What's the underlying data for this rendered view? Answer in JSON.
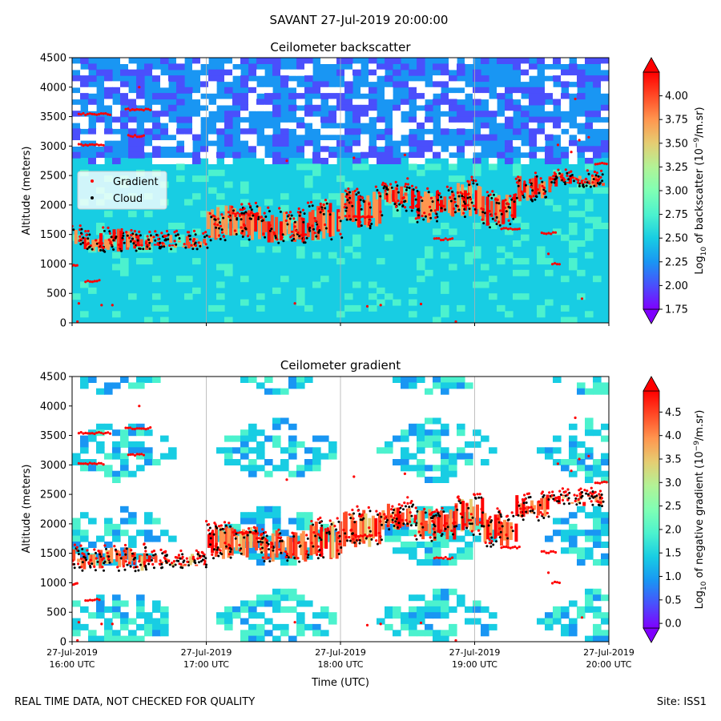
{
  "suptitle": "SAVANT 27-Jul-2019 20:00:00",
  "footer_left": "REAL TIME DATA, NOT CHECKED FOR QUALITY",
  "footer_right": "Site: ISS1",
  "colors": {
    "gradient_marker": "#ff0000",
    "cloud_marker": "#000000",
    "colormap": [
      "#7f00ff",
      "#4a4ffc",
      "#1996f3",
      "#18cde3",
      "#4cf2ce",
      "#80ffb4",
      "#b2f296",
      "#e5cd72",
      "#ff964f",
      "#ff4a26",
      "#ff0000"
    ]
  },
  "chart_data": [
    {
      "type": "heatmap",
      "title": "Ceilometer backscatter",
      "xlabel": "",
      "ylabel": "Altitude (meters)",
      "ylim": [
        0,
        4500
      ],
      "yticks": [
        0,
        500,
        1000,
        1500,
        2000,
        2500,
        3000,
        3500,
        4000,
        4500
      ],
      "ytick_labels": [
        "0",
        "500",
        "1000",
        "1500",
        "2000",
        "2500",
        "3000",
        "3500",
        "4000",
        "4500"
      ],
      "x_range_utc": [
        "16:00",
        "20:00"
      ],
      "show_xtick_labels": false,
      "colorbar": {
        "label_prefix": "Log",
        "label_sub": "10",
        "label_mid": " of backscatter (10",
        "label_sup": "−9",
        "label_suffix": "/m.sr)",
        "range": [
          1.75,
          4.25
        ],
        "ticks": [
          1.75,
          2.0,
          2.25,
          2.5,
          2.75,
          3.0,
          3.25,
          3.5,
          3.75,
          4.0
        ],
        "tick_labels": [
          "1.75",
          "2.00",
          "2.25",
          "2.50",
          "2.75",
          "3.00",
          "3.25",
          "3.50",
          "3.75",
          "4.00"
        ]
      },
      "legend": {
        "location": "center-left",
        "entries": [
          {
            "label": "Gradient",
            "color": "#ff0000"
          },
          {
            "label": "Cloud",
            "color": "#000000"
          }
        ]
      }
    },
    {
      "type": "heatmap",
      "title": "Ceilometer gradient",
      "xlabel": "Time (UTC)",
      "ylabel": "Altitude (meters)",
      "ylim": [
        0,
        4500
      ],
      "yticks": [
        0,
        500,
        1000,
        1500,
        2000,
        2500,
        3000,
        3500,
        4000,
        4500
      ],
      "ytick_labels": [
        "0",
        "500",
        "1000",
        "1500",
        "2000",
        "2500",
        "3000",
        "3500",
        "4000",
        "4500"
      ],
      "x_range_utc": [
        "16:00",
        "20:00"
      ],
      "show_xtick_labels": true,
      "xticks": [
        {
          "line1": "27-Jul-2019",
          "line2": "16:00 UTC",
          "t": 0
        },
        {
          "line1": "27-Jul-2019",
          "line2": "17:00 UTC",
          "t": 1
        },
        {
          "line1": "27-Jul-2019",
          "line2": "18:00 UTC",
          "t": 2
        },
        {
          "line1": "27-Jul-2019",
          "line2": "19:00 UTC",
          "t": 3
        },
        {
          "line1": "27-Jul-2019",
          "line2": "20:00 UTC",
          "t": 4
        }
      ],
      "colorbar": {
        "label_prefix": "Log",
        "label_sub": "10",
        "label_mid": " of negative gradient (10",
        "label_sup": "−9",
        "label_suffix": "/m.sr)",
        "range": [
          -0.1,
          4.95
        ],
        "ticks": [
          0.0,
          0.5,
          1.0,
          1.5,
          2.0,
          2.5,
          3.0,
          3.5,
          4.0,
          4.5
        ],
        "tick_labels": [
          "0.0",
          "0.5",
          "1.0",
          "1.5",
          "2.0",
          "2.5",
          "3.0",
          "3.5",
          "4.0",
          "4.5"
        ]
      }
    }
  ],
  "cloud_layers": [
    {
      "t0": 0.0,
      "t1": 0.55,
      "alt": [
        1200,
        1600
      ]
    },
    {
      "t0": 0.55,
      "t1": 1.0,
      "alt": [
        1250,
        1500
      ]
    },
    {
      "t0": 1.0,
      "t1": 1.4,
      "alt": [
        1400,
        2000
      ]
    },
    {
      "t0": 1.4,
      "t1": 1.75,
      "alt": [
        1350,
        1900
      ]
    },
    {
      "t0": 1.75,
      "t1": 2.0,
      "alt": [
        1400,
        2050
      ]
    },
    {
      "t0": 2.0,
      "t1": 2.3,
      "alt": [
        1600,
        2250
      ]
    },
    {
      "t0": 2.3,
      "t1": 2.55,
      "alt": [
        1900,
        2350
      ]
    },
    {
      "t0": 2.55,
      "t1": 2.85,
      "alt": [
        1700,
        2250
      ]
    },
    {
      "t0": 2.85,
      "t1": 3.05,
      "alt": [
        1800,
        2450
      ]
    },
    {
      "t0": 3.05,
      "t1": 3.3,
      "alt": [
        1600,
        2200
      ]
    },
    {
      "t0": 3.3,
      "t1": 3.55,
      "alt": [
        2050,
        2500
      ]
    },
    {
      "t0": 3.55,
      "t1": 3.95,
      "alt": [
        2300,
        2550
      ]
    }
  ],
  "gradient_layers": [
    {
      "t0": 0.05,
      "t1": 0.3,
      "alt": 3540
    },
    {
      "t0": 0.05,
      "t1": 0.25,
      "alt": 3020
    },
    {
      "t0": 0.4,
      "t1": 0.6,
      "alt": 3620
    },
    {
      "t0": 0.42,
      "t1": 0.55,
      "alt": 3170
    },
    {
      "t0": 0.1,
      "t1": 0.22,
      "alt": 710
    },
    {
      "t0": 0.0,
      "t1": 0.05,
      "alt": 980
    },
    {
      "t0": 1.2,
      "t1": 1.4,
      "alt": 1850
    },
    {
      "t0": 2.1,
      "t1": 2.25,
      "alt": 1800
    },
    {
      "t0": 2.7,
      "t1": 2.85,
      "alt": 1420
    },
    {
      "t0": 3.5,
      "t1": 3.62,
      "alt": 1520
    },
    {
      "t0": 3.2,
      "t1": 3.35,
      "alt": 1600
    },
    {
      "t0": 3.58,
      "t1": 3.65,
      "alt": 1000
    },
    {
      "t0": 3.9,
      "t1": 4.0,
      "alt": 2700
    }
  ],
  "scatter_points": [
    {
      "t": 0.04,
      "alt": 20
    },
    {
      "t": 0.05,
      "alt": 330
    },
    {
      "t": 0.22,
      "alt": 300
    },
    {
      "t": 0.3,
      "alt": 300
    },
    {
      "t": 1.66,
      "alt": 330
    },
    {
      "t": 2.2,
      "alt": 280
    },
    {
      "t": 2.3,
      "alt": 300
    },
    {
      "t": 2.6,
      "alt": 320
    },
    {
      "t": 2.86,
      "alt": 20
    },
    {
      "t": 3.8,
      "alt": 410
    },
    {
      "t": 3.55,
      "alt": 1170
    },
    {
      "t": 3.75,
      "alt": 3800
    },
    {
      "t": 3.72,
      "alt": 2900
    },
    {
      "t": 3.78,
      "alt": 3100
    },
    {
      "t": 2.48,
      "alt": 2850
    },
    {
      "t": 2.5,
      "alt": 2450
    },
    {
      "t": 0.5,
      "alt": 4000
    },
    {
      "t": 1.6,
      "alt": 2750
    },
    {
      "t": 3.62,
      "alt": 3020
    },
    {
      "t": 3.85,
      "alt": 3150
    },
    {
      "t": 2.1,
      "alt": 2800
    }
  ]
}
